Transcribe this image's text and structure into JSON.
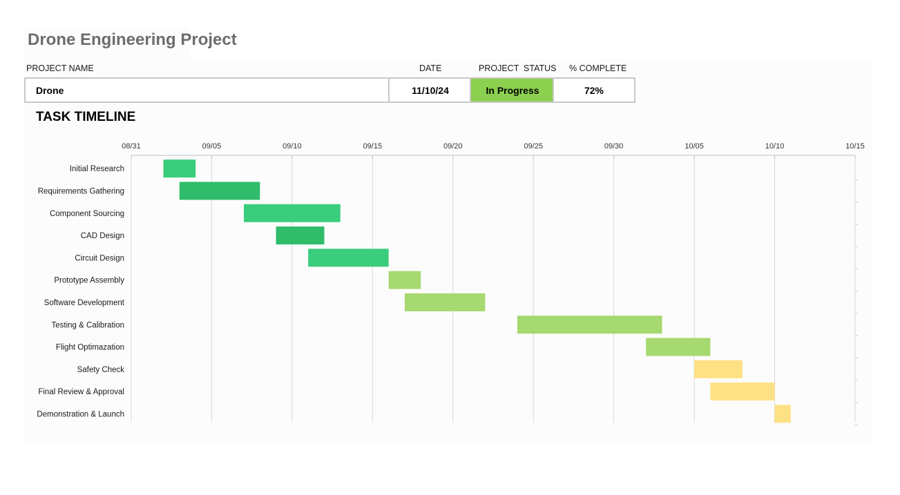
{
  "title": "Drone Engineering Project",
  "header_labels": {
    "project_name": "PROJECT NAME",
    "date": "DATE",
    "project_status": "PROJECT  STATUS",
    "percent_complete": "% COMPLETE"
  },
  "project": {
    "name": "Drone",
    "date": "11/10/24",
    "status": "In Progress",
    "percent_complete": "72%"
  },
  "colors": {
    "status_fill": "#8cd04f",
    "bar_green_1": "#3acd7b",
    "bar_green_2": "#2fbc6b",
    "bar_lime": "#a6d96f",
    "bar_yellow": "#ffe185",
    "grid": "#d9d9d9"
  },
  "section_title": "TASK TIMELINE",
  "chart_data": {
    "type": "gantt",
    "x_ticks": [
      "08/31",
      "09/05",
      "09/10",
      "09/15",
      "09/20",
      "09/25",
      "09/30",
      "10/05",
      "10/10",
      "10/15"
    ],
    "x_range": [
      "2024-08-31",
      "2024-10-15"
    ],
    "grid": true,
    "tasks": [
      {
        "name": "Initial Research",
        "start": "2024-09-02",
        "end": "2024-09-04",
        "color": "#3acd7b"
      },
      {
        "name": "Requirements Gathering",
        "start": "2024-09-03",
        "end": "2024-09-08",
        "color": "#2fbc6b"
      },
      {
        "name": "Component Sourcing",
        "start": "2024-09-07",
        "end": "2024-09-13",
        "color": "#3acd7b"
      },
      {
        "name": "CAD Design",
        "start": "2024-09-09",
        "end": "2024-09-12",
        "color": "#2fbc6b"
      },
      {
        "name": "Circuit Design",
        "start": "2024-09-11",
        "end": "2024-09-16",
        "color": "#3acd7b"
      },
      {
        "name": "Prototype Assembly",
        "start": "2024-09-16",
        "end": "2024-09-18",
        "color": "#a6d96f"
      },
      {
        "name": "Software Development",
        "start": "2024-09-17",
        "end": "2024-09-22",
        "color": "#a6d96f"
      },
      {
        "name": "Testing & Calibration",
        "start": "2024-09-24",
        "end": "2024-10-03",
        "color": "#a6d96f"
      },
      {
        "name": "Flight Optimazation",
        "start": "2024-10-02",
        "end": "2024-10-06",
        "color": "#a6d96f"
      },
      {
        "name": "Safety Check",
        "start": "2024-10-05",
        "end": "2024-10-08",
        "color": "#ffe185"
      },
      {
        "name": "Final Review & Approval",
        "start": "2024-10-06",
        "end": "2024-10-10",
        "color": "#ffe185"
      },
      {
        "name": "Demonstration & Launch",
        "start": "2024-10-10",
        "end": "2024-10-11",
        "color": "#ffe185"
      }
    ]
  }
}
